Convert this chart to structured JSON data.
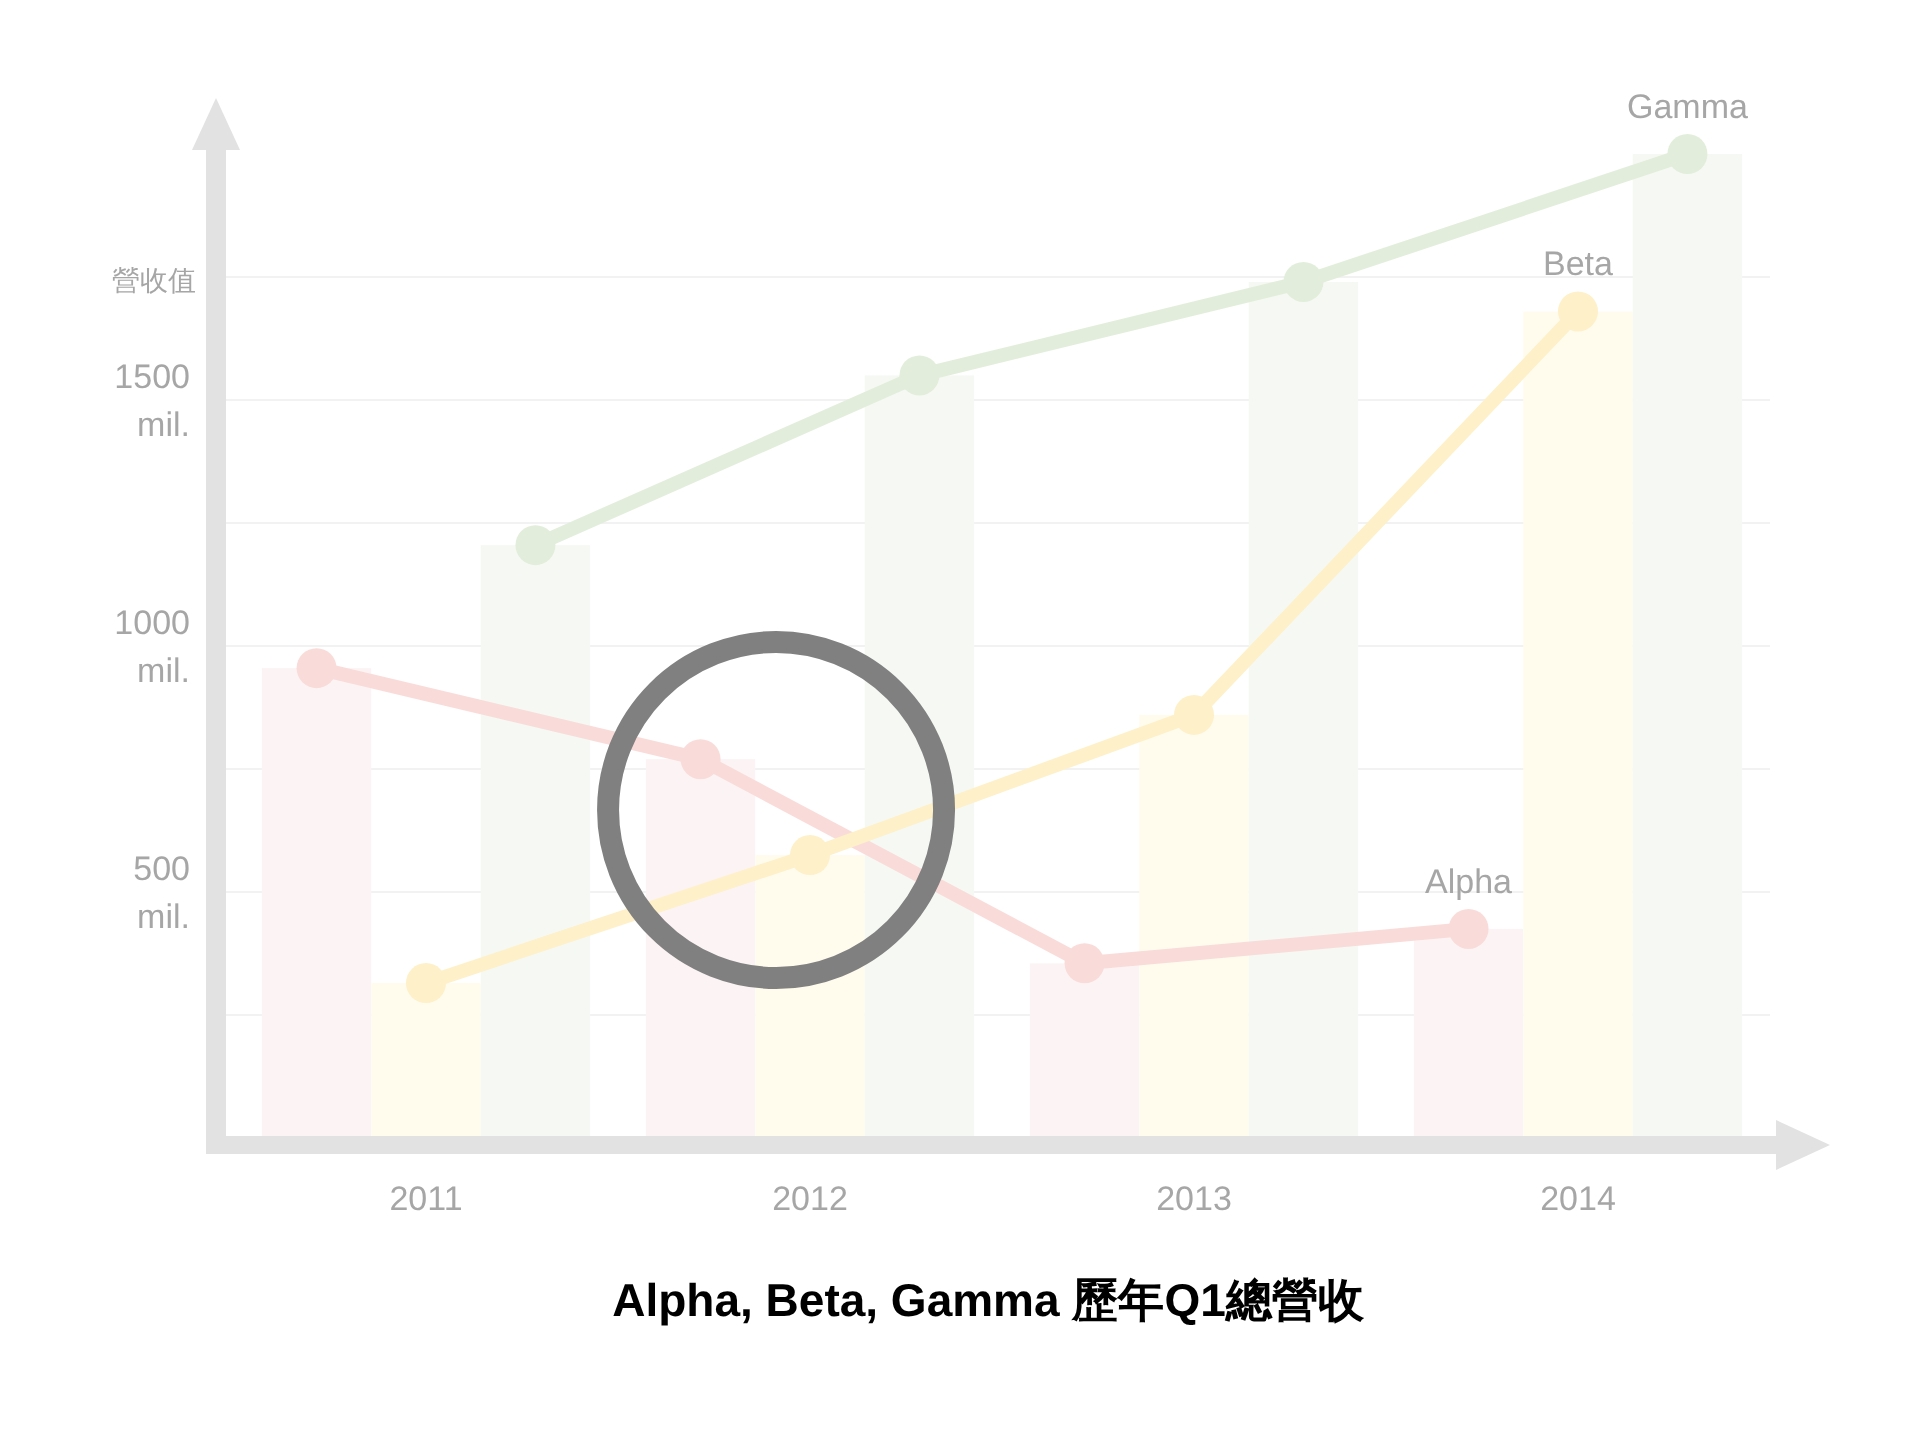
{
  "chart_data": {
    "type": "bar",
    "title": "Alpha, Beta, Gamma 歷年Q1總營收",
    "ylabel": "營收值",
    "categories": [
      "2011",
      "2012",
      "2013",
      "2014"
    ],
    "series": [
      {
        "color": "#fcf4f4",
        "values": [
          955,
          770,
          355,
          425
        ]
      },
      {
        "color": "#fffcee",
        "values": [
          315,
          575,
          860,
          1680
        ]
      },
      {
        "color": "#f6f9f3",
        "values": [
          1205,
          1550,
          1740,
          2000
        ]
      },
      {
        "type": "line",
        "name": "Alpha",
        "color": "#f9dcd9",
        "values": [
          955,
          770,
          355,
          425
        ]
      },
      {
        "type": "line",
        "name": "Beta",
        "color": "#fef0c8",
        "values": [
          315,
          575,
          860,
          1680
        ]
      },
      {
        "type": "line",
        "name": "Gamma",
        "color": "#e2eedb",
        "values": [
          1205,
          1550,
          1740,
          2000
        ]
      }
    ],
    "ylim": [
      0,
      2000
    ],
    "yticks": [
      {
        "value": 250,
        "label": null
      },
      {
        "value": 500,
        "label": "500 mil."
      },
      {
        "value": 750,
        "label": null
      },
      {
        "value": 1000,
        "label": "1000 mil."
      },
      {
        "value": 1250,
        "label": null
      },
      {
        "value": 1500,
        "label": "1500 mil."
      },
      {
        "value": 1750,
        "label": null
      }
    ],
    "grid": "y",
    "marker": "circle"
  }
}
